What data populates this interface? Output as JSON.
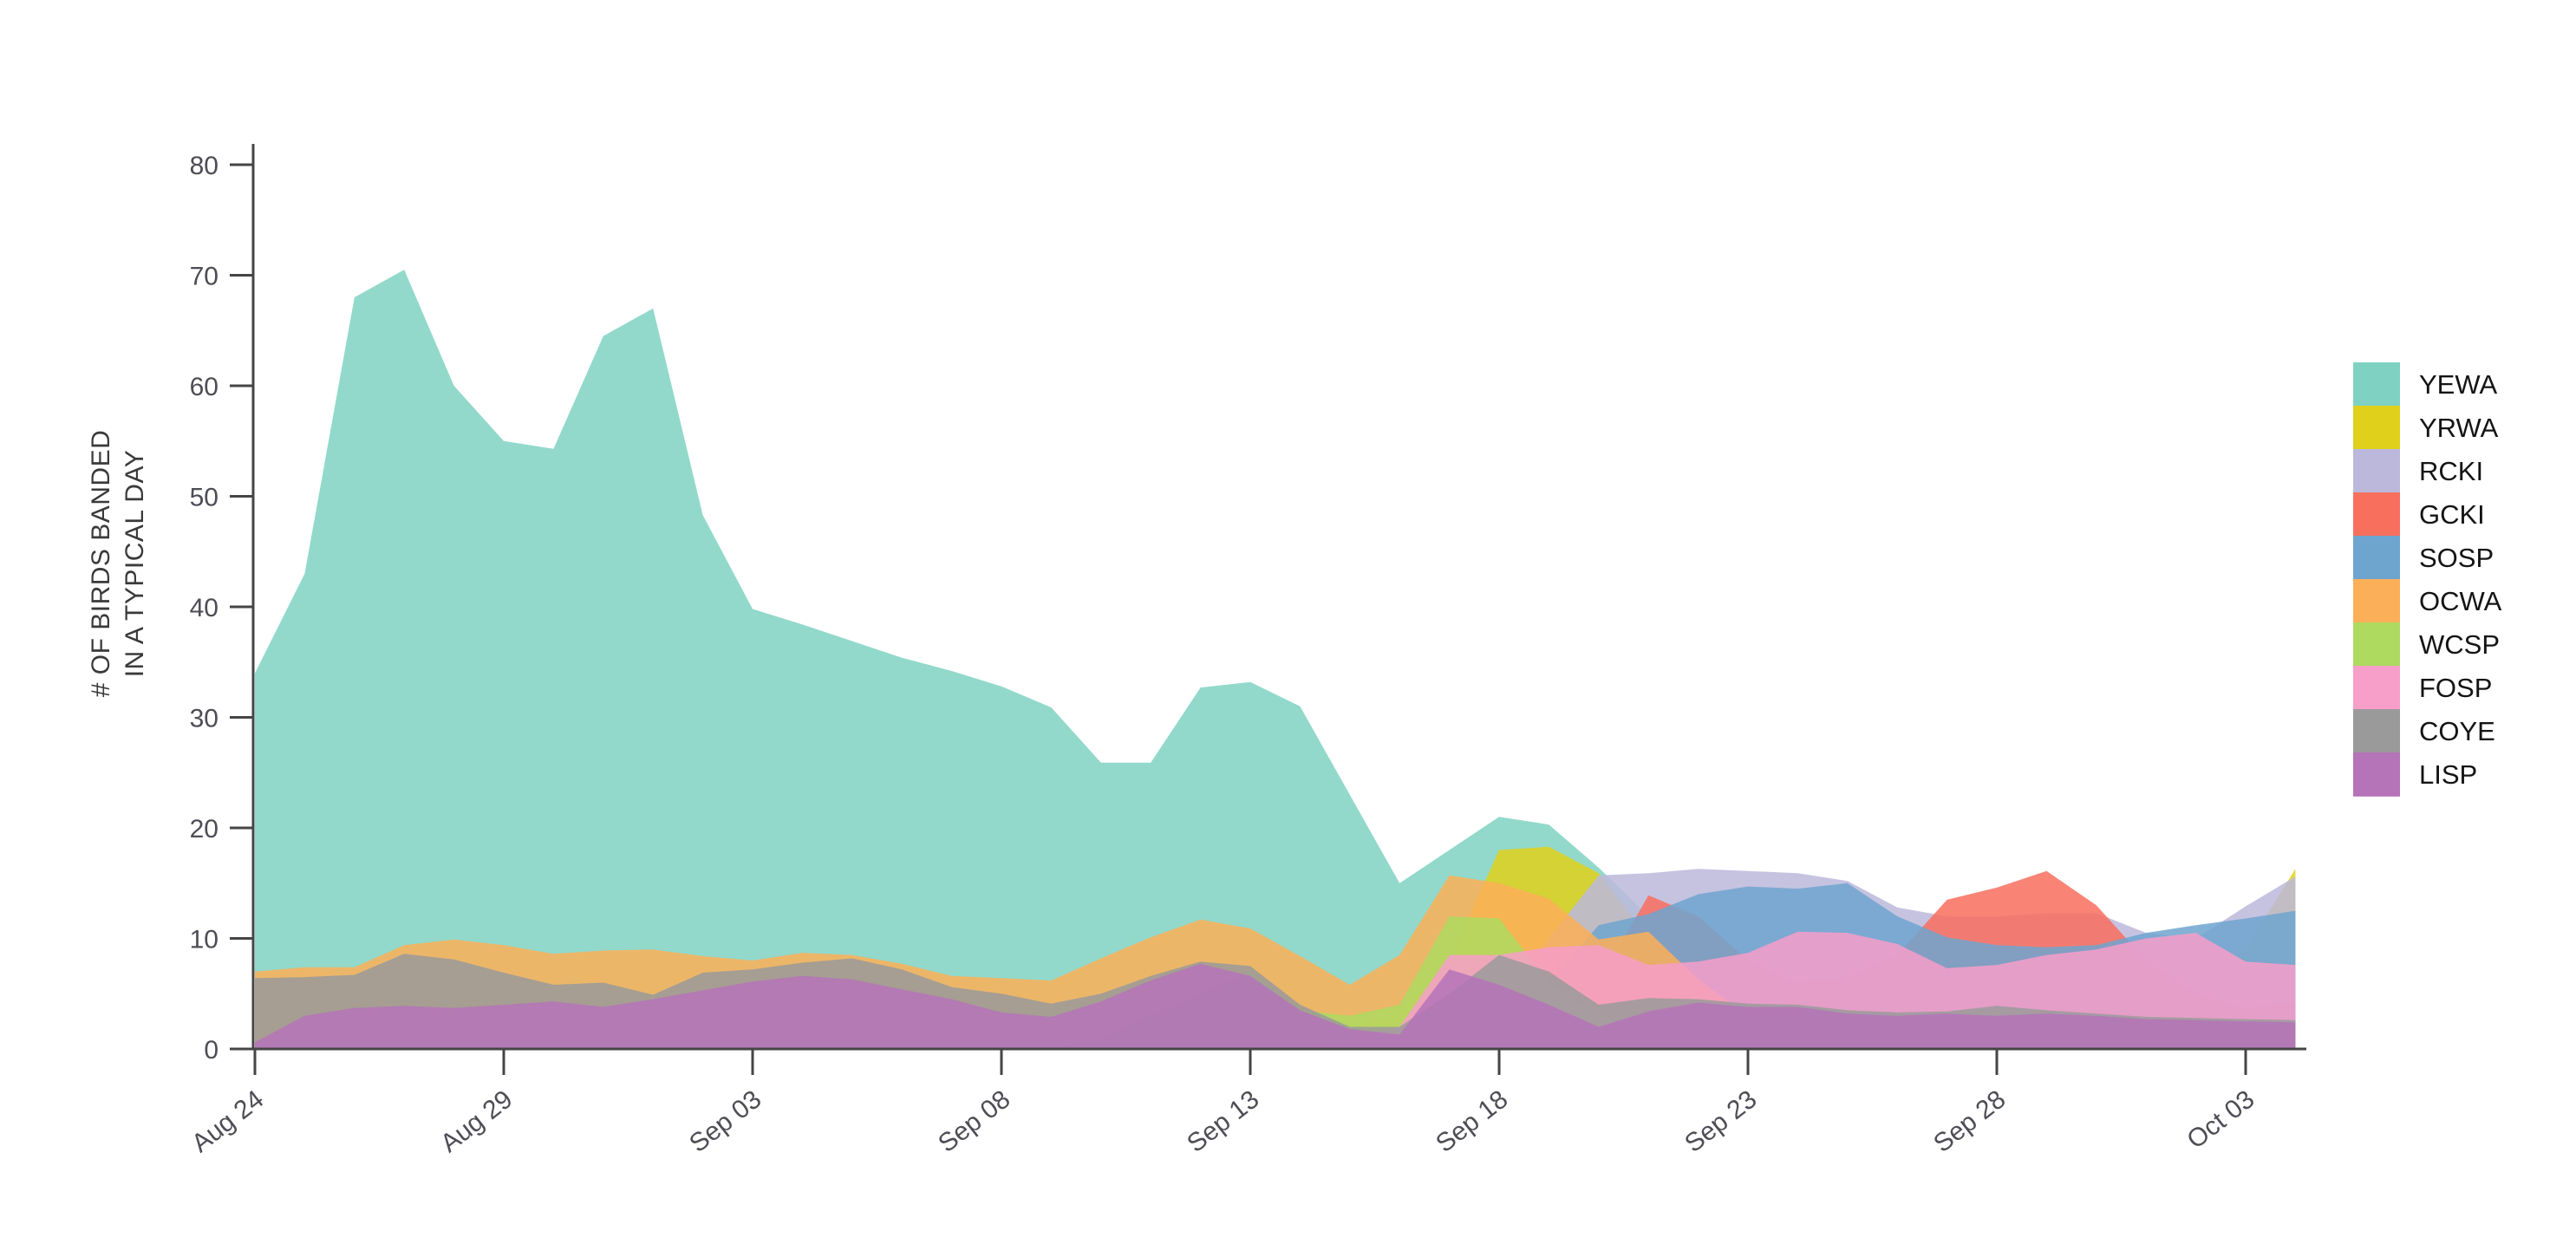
{
  "chart_data": {
    "type": "area",
    "mode": "overlay-transparent",
    "title": "",
    "xlabel": "",
    "ylabel_lines": [
      "# OF BIRDS BANDED",
      "IN A TYPICAL DAY"
    ],
    "ylim": [
      0,
      80
    ],
    "y_ticks": [
      0,
      10,
      20,
      30,
      40,
      50,
      60,
      70,
      80
    ],
    "x_tick_labels": [
      "Aug 24",
      "Aug 29",
      "Sep 03",
      "Sep 08",
      "Sep 13",
      "Sep 18",
      "Sep 23",
      "Sep 28",
      "Oct 03"
    ],
    "x_tick_day_index": [
      0,
      5,
      10,
      15,
      20,
      25,
      30,
      35,
      40
    ],
    "grid": false,
    "legend_position": "right",
    "fill_opacity": 0.85,
    "axis_color": "#454545",
    "tick_label_color": "#4d4d55",
    "x": [
      "Aug 24",
      "Aug 25",
      "Aug 26",
      "Aug 27",
      "Aug 28",
      "Aug 29",
      "Aug 30",
      "Aug 31",
      "Sep 01",
      "Sep 02",
      "Sep 03",
      "Sep 04",
      "Sep 05",
      "Sep 06",
      "Sep 07",
      "Sep 08",
      "Sep 09",
      "Sep 10",
      "Sep 11",
      "Sep 12",
      "Sep 13",
      "Sep 14",
      "Sep 15",
      "Sep 16",
      "Sep 17",
      "Sep 18",
      "Sep 19",
      "Sep 20",
      "Sep 21",
      "Sep 22",
      "Sep 23",
      "Sep 24",
      "Sep 25",
      "Sep 26",
      "Sep 27",
      "Sep 28",
      "Sep 29",
      "Sep 30",
      "Oct 01",
      "Oct 02",
      "Oct 03",
      "Oct 04"
    ],
    "series": [
      {
        "name": "YEWA",
        "color": "#7fd2c2",
        "values": [
          34,
          43,
          68,
          70.5,
          60,
          55,
          54.3,
          64.5,
          67,
          48.3,
          39.8,
          38.4,
          36.9,
          35.4,
          34.2,
          32.8,
          30.9,
          25.9,
          25.9,
          32.7,
          33.2,
          31,
          23,
          15,
          18,
          21,
          20.3,
          16.4,
          12,
          8,
          5.5,
          4,
          3.5,
          3,
          3,
          3,
          3,
          2.5,
          2.5,
          2.5,
          2.5,
          2.5
        ]
      },
      {
        "name": "YRWA",
        "color": "#e0d01c",
        "values": [
          0,
          0,
          0,
          0,
          0,
          0,
          0,
          0,
          0,
          0,
          0,
          0,
          0,
          0,
          0,
          0,
          0,
          0,
          0,
          0,
          0.5,
          1,
          2,
          3,
          8,
          18,
          18.3,
          15.9,
          10,
          7,
          6,
          5,
          5,
          4.5,
          4.5,
          4.5,
          5,
          5,
          5.5,
          6.5,
          9,
          16.3
        ]
      },
      {
        "name": "RCKI",
        "color": "#bcb8dc",
        "values": [
          0,
          0,
          0,
          0,
          0,
          0,
          0,
          0,
          0,
          0,
          0,
          0,
          0,
          0,
          0,
          0,
          0,
          0,
          0,
          0,
          0,
          0,
          0,
          0,
          1,
          3,
          10,
          15.7,
          15.9,
          16.3,
          16.1,
          15.9,
          15.2,
          12.8,
          12,
          12,
          12.3,
          12.3,
          10.5,
          10,
          12.9,
          15.6
        ]
      },
      {
        "name": "GCKI",
        "color": "#f86f5e",
        "values": [
          0,
          0,
          0,
          0,
          0,
          0,
          0,
          0,
          0,
          0,
          0,
          0,
          0,
          0,
          0,
          0,
          0,
          0,
          0,
          0,
          0,
          0,
          0,
          0,
          0,
          1,
          3,
          6,
          13.9,
          12,
          8,
          6,
          6.5,
          8.5,
          13.5,
          14.6,
          16.1,
          13,
          8,
          5,
          3.7,
          4.2
        ]
      },
      {
        "name": "SOSP",
        "color": "#6ea5cf",
        "values": [
          0,
          0,
          0,
          0,
          0,
          0,
          0,
          0,
          0,
          0,
          0,
          0,
          0,
          0,
          0,
          0,
          0,
          0,
          0,
          0,
          0,
          0,
          0,
          0,
          0,
          2,
          6,
          11.2,
          12.2,
          14,
          14.7,
          14.5,
          15,
          12,
          10.1,
          9.4,
          9.2,
          9.4,
          10.5,
          11.2,
          11.8,
          12.5
        ]
      },
      {
        "name": "OCWA",
        "color": "#fbaf58",
        "values": [
          7,
          7.4,
          7.4,
          9.4,
          9.9,
          9.4,
          8.6,
          8.9,
          9,
          8.4,
          8,
          8.7,
          8.5,
          7.7,
          6.6,
          6.4,
          6.2,
          8.2,
          10.1,
          11.7,
          10.9,
          8.4,
          5.8,
          8.5,
          15.7,
          15,
          13.6,
          9.9,
          10.6,
          6.3,
          3,
          1.5,
          1,
          0.8,
          0.6,
          0.5,
          0.5,
          0.5,
          0.5,
          0.5,
          0.5,
          0.5
        ]
      },
      {
        "name": "WCSP",
        "color": "#aeda5f",
        "values": [
          0,
          0,
          0,
          0,
          0,
          0,
          0,
          0,
          0,
          0,
          0,
          0,
          0,
          0,
          0,
          0,
          0,
          1,
          3,
          5,
          6.9,
          3.5,
          3,
          4,
          12,
          11.8,
          6,
          3,
          2,
          1,
          0.8,
          0.6,
          0.5,
          0.5,
          0.5,
          0.5,
          0.5,
          0.5,
          0.5,
          0.5,
          0.5,
          0.5
        ]
      },
      {
        "name": "FOSP",
        "color": "#f79ec9",
        "values": [
          0,
          0,
          0,
          0,
          0,
          0,
          0,
          0,
          0,
          0,
          0,
          0,
          0,
          0,
          0,
          0,
          0,
          0,
          0,
          0,
          0,
          0,
          1,
          2,
          8.5,
          8.5,
          9.2,
          9.4,
          7.6,
          7.9,
          8.7,
          10.6,
          10.5,
          9.5,
          7.3,
          7.6,
          8.5,
          9,
          10,
          10.5,
          7.9,
          7.6
        ]
      },
      {
        "name": "COYE",
        "color": "#9a9a9a",
        "values": [
          6.4,
          6.5,
          6.7,
          8.6,
          8.1,
          6.9,
          5.8,
          6,
          4.9,
          6.9,
          7.2,
          7.8,
          8.2,
          7.2,
          5.6,
          5,
          4.1,
          5,
          6.6,
          7.9,
          7.5,
          4,
          2,
          2,
          5,
          8.5,
          7,
          4,
          4.6,
          4.5,
          4.1,
          4,
          3.5,
          3.3,
          3.4,
          3.9,
          3.5,
          3.2,
          2.9,
          2.8,
          2.7,
          2.6
        ]
      },
      {
        "name": "LISP",
        "color": "#b573b8",
        "values": [
          0.6,
          3,
          3.7,
          3.9,
          3.7,
          4,
          4.3,
          3.8,
          4.5,
          5.3,
          6.1,
          6.6,
          6.3,
          5.4,
          4.5,
          3.3,
          2.9,
          4.3,
          6.2,
          7.7,
          6.6,
          3.5,
          1.8,
          1.3,
          7.2,
          5.8,
          4,
          2,
          3.4,
          4.2,
          3.8,
          3.8,
          3.2,
          3,
          3.2,
          3,
          3.2,
          3,
          2.7,
          2.6,
          2.5,
          2.4
        ]
      }
    ]
  },
  "legend": {
    "items": [
      "YEWA",
      "YRWA",
      "RCKI",
      "GCKI",
      "SOSP",
      "OCWA",
      "WCSP",
      "FOSP",
      "COYE",
      "LISP"
    ]
  }
}
